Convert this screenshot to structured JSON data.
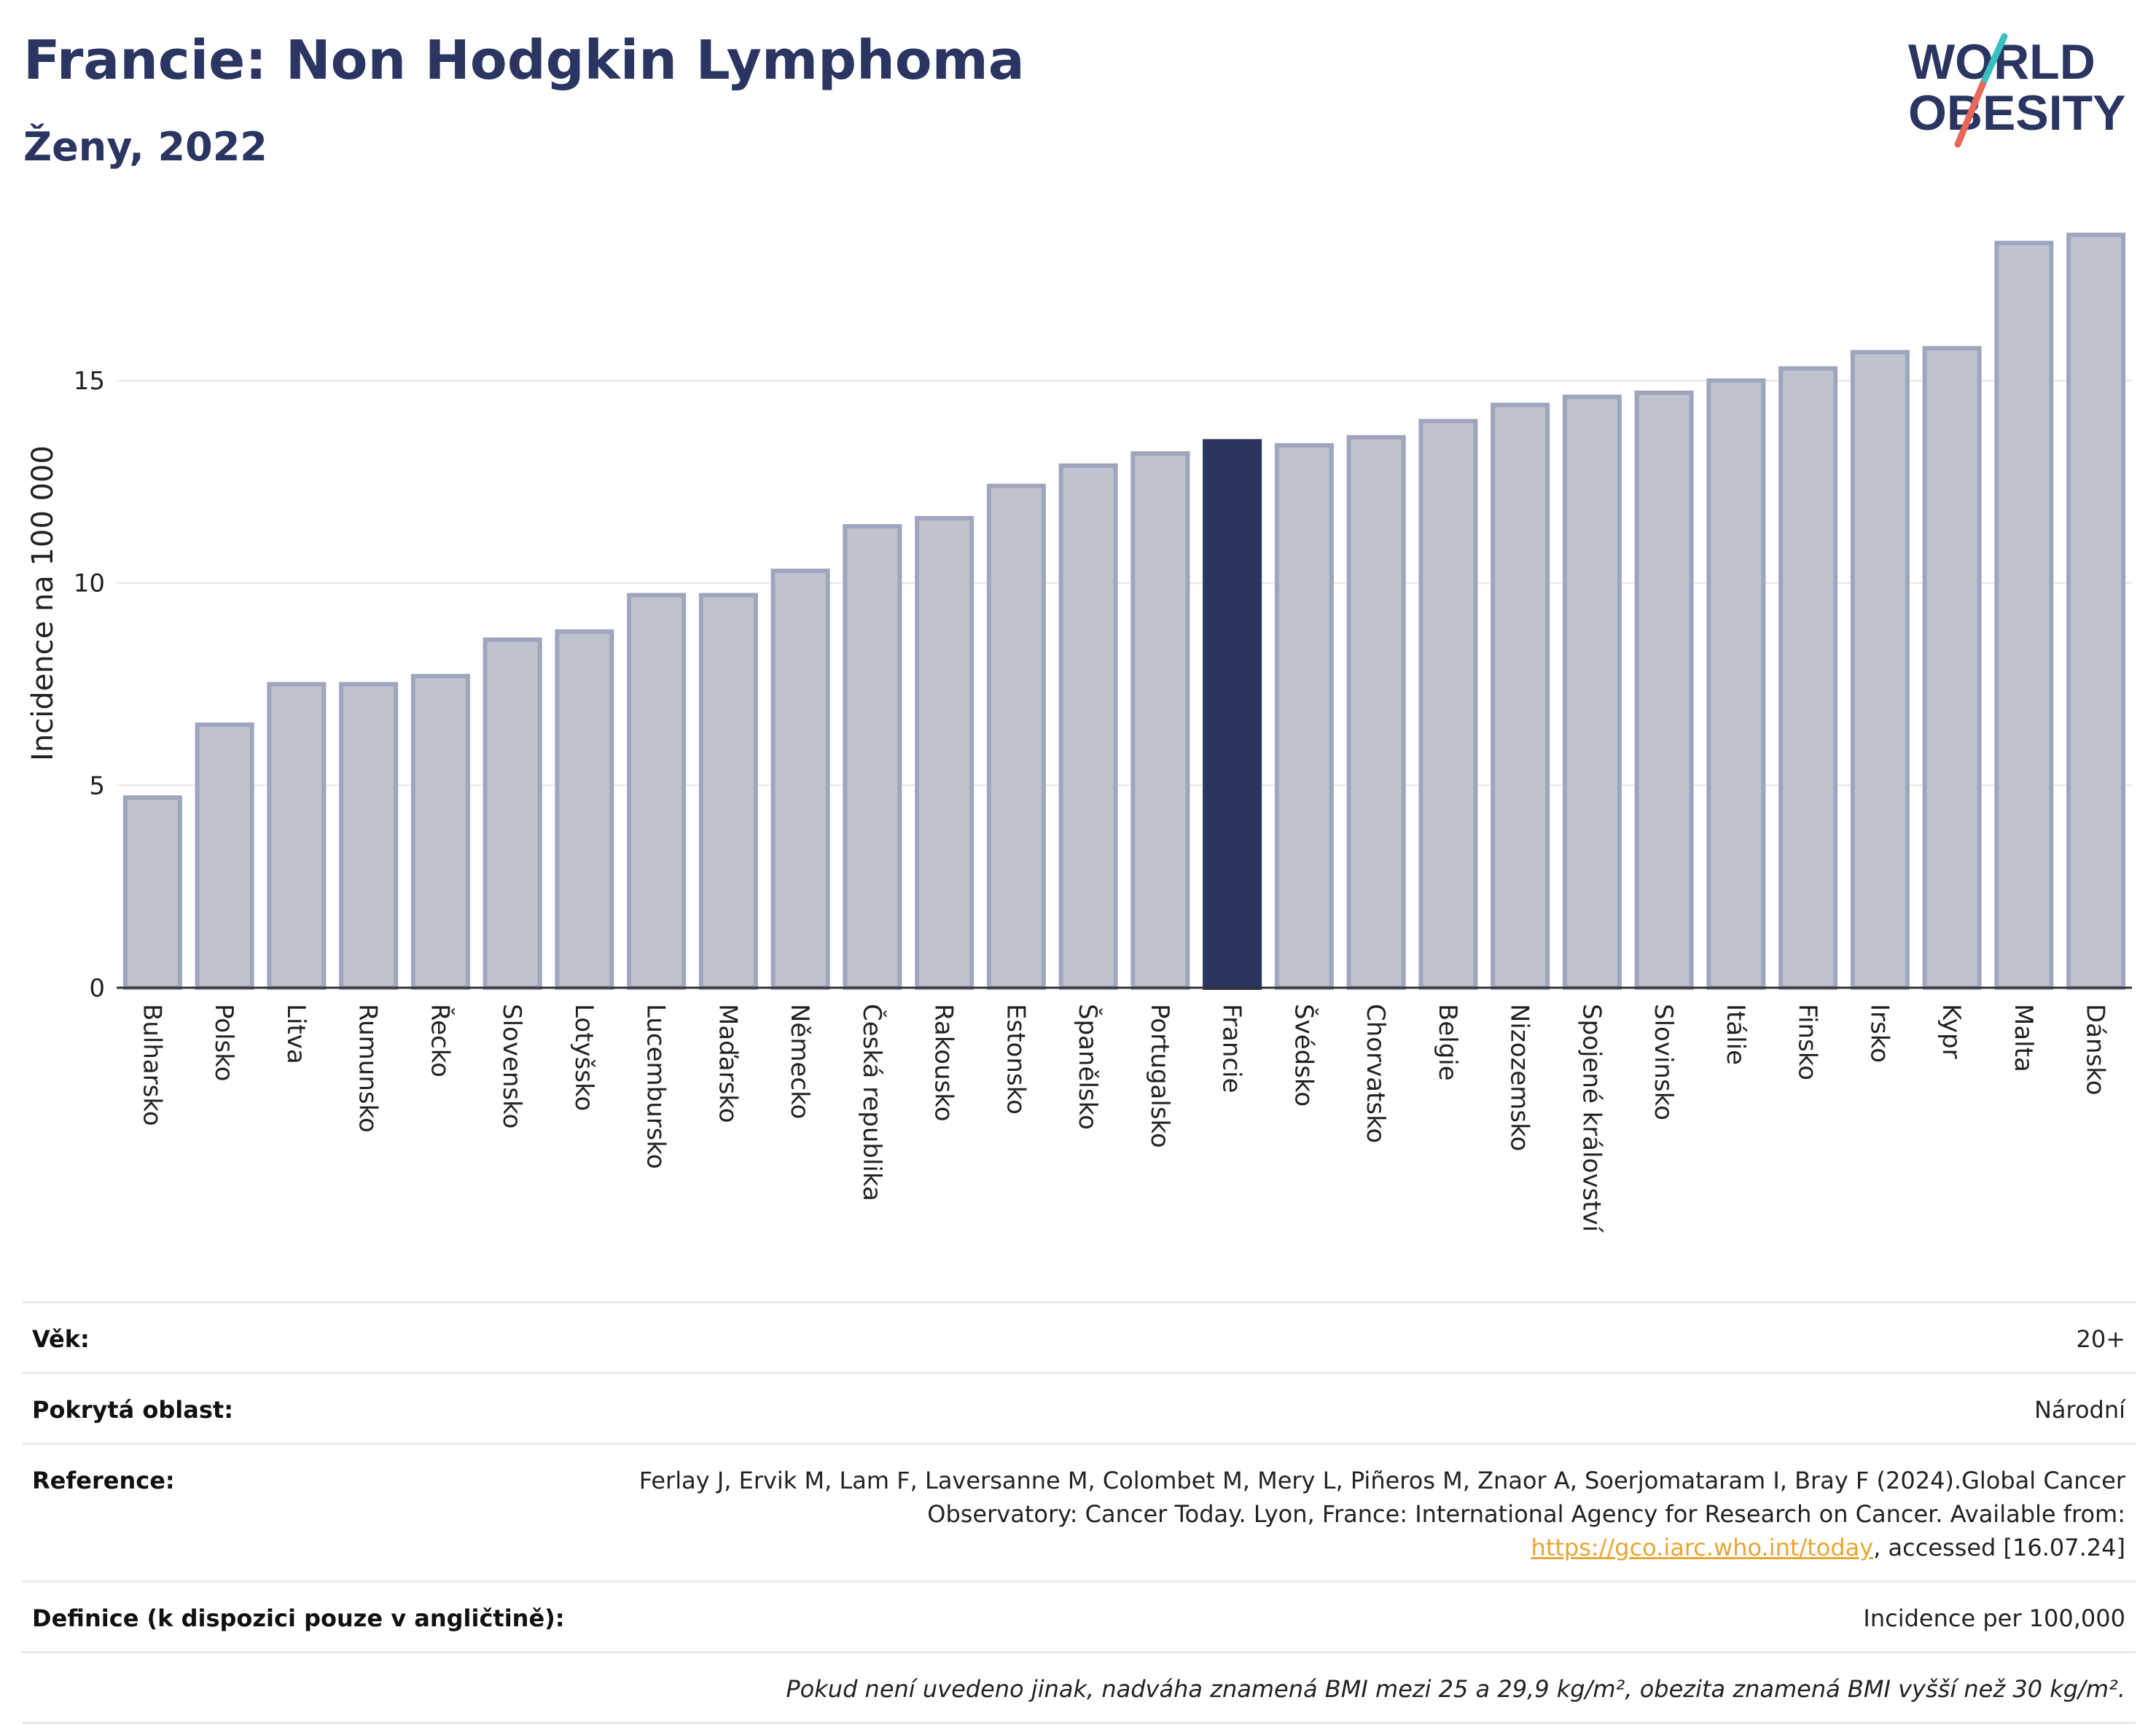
{
  "header": {
    "title": "Francie: Non Hodgkin Lymphoma",
    "subtitle": "Ženy, 2022"
  },
  "logo": {
    "line1": "WORLD",
    "line2": "OBESITY",
    "colors": {
      "text": "#2a3561",
      "slash_top": "#3bbfc0",
      "slash_bottom": "#e8665a"
    }
  },
  "chart_data": {
    "type": "bar",
    "ylabel": "Incidence na 100 000",
    "ylim": [
      0,
      19
    ],
    "yticks": [
      0,
      5,
      10,
      15
    ],
    "grid": true,
    "highlight": "Francie",
    "colors": {
      "bar": "#bfc3d0",
      "bar_border": "#9ea5bd",
      "highlight": "#2a3561",
      "grid": "#e3e6ee"
    },
    "categories": [
      "Bulharsko",
      "Polsko",
      "Litva",
      "Rumunsko",
      "Řecko",
      "Slovensko",
      "Lotyšsko",
      "Lucembursko",
      "Maďarsko",
      "Německo",
      "Česká republika",
      "Rakousko",
      "Estonsko",
      "Španělsko",
      "Portugalsko",
      "Francie",
      "Švédsko",
      "Chorvatsko",
      "Belgie",
      "Nizozemsko",
      "Spojené království",
      "Slovinsko",
      "Itálie",
      "Finsko",
      "Irsko",
      "Kypr",
      "Malta",
      "Dánsko"
    ],
    "values": [
      4.7,
      6.5,
      7.5,
      7.5,
      7.7,
      8.6,
      8.8,
      9.7,
      9.7,
      10.3,
      11.4,
      11.6,
      12.4,
      12.9,
      13.2,
      13.5,
      13.4,
      13.6,
      14.0,
      14.4,
      14.6,
      14.7,
      15.0,
      15.3,
      15.7,
      15.8,
      18.4,
      18.6
    ]
  },
  "info": {
    "age_label": "Věk:",
    "age_value": "20+",
    "area_label": "Pokrytá oblast:",
    "area_value": "Národní",
    "reference_label": "Reference:",
    "reference_text": "Ferlay J, Ervik M, Lam F, Laversanne M, Colombet M, Mery L, Piñeros M, Znaor A, Soerjomataram I, Bray F (2024).Global Cancer Observatory: Cancer Today. Lyon, France: International Agency for Research on Cancer. Available from: ",
    "reference_link": "https://gco.iarc.who.int/today",
    "reference_tail": ", accessed [16.07.24]",
    "definition_label": "Definice (k dispozici pouze v angličtině):",
    "definition_value": "Incidence per 100,000",
    "note": "Pokud není uvedeno jinak, nadváha znamená BMI mezi 25 a 29,9 kg/m², obezita znamená BMI vyšší než 30 kg/m²."
  }
}
